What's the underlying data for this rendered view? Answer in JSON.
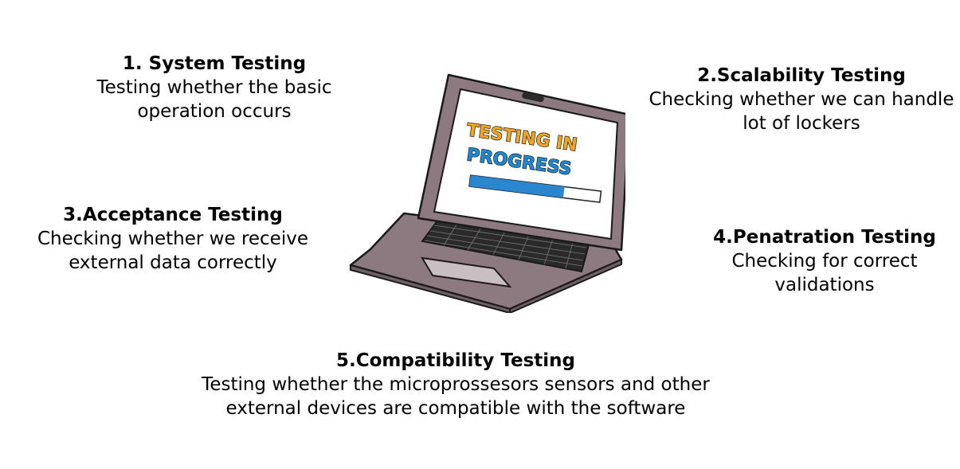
{
  "items": [
    {
      "title": "1. System Testing",
      "desc": "Testing whether the basic operation occurs"
    },
    {
      "title": "2.Scalability Testing",
      "desc": "Checking whether we can handle lot of lockers"
    },
    {
      "title": "3.Acceptance Testing",
      "desc": "Checking whether we receive external data correctly"
    },
    {
      "title": "4.Penatration Testing",
      "desc": "Checking for correct validations"
    },
    {
      "title": "5.Compatibility Testing",
      "desc": "Testing whether the microprossesors sensors and other external devices are compatible with the software"
    }
  ],
  "laptop": {
    "screen_line1": "TESTING IN",
    "screen_line2": "PROGRESS",
    "progress_fraction": 0.72,
    "colors": {
      "line1": "#f4a51c",
      "line2": "#1c8ad4",
      "progress": "#2a86cf",
      "body": "#8c7a80",
      "screen": "#ffffff"
    }
  }
}
